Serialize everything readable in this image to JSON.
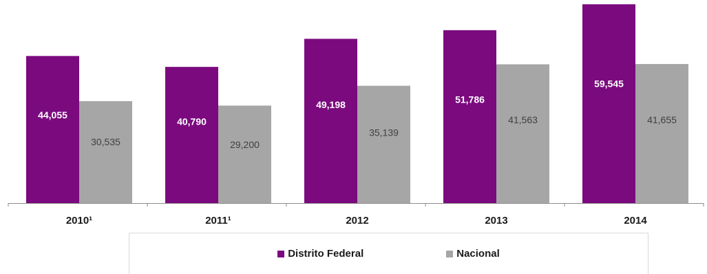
{
  "chart_data": {
    "type": "bar",
    "categories": [
      "2010¹",
      "2011¹",
      "2012",
      "2013",
      "2014"
    ],
    "series": [
      {
        "name": "Distrito Federal",
        "values": [
          44055,
          40790,
          49198,
          51786,
          59545
        ],
        "labels": [
          "44,055",
          "40,790",
          "49,198",
          "51,786",
          "59,545"
        ],
        "color": "#7b0a7f",
        "label_color": "#ffffff"
      },
      {
        "name": "Nacional",
        "values": [
          30535,
          29200,
          35139,
          41563,
          41655
        ],
        "labels": [
          "30,535",
          "29,200",
          "35,139",
          "41,563",
          "41,655"
        ],
        "color": "#a6a6a6",
        "label_color": "#404040"
      }
    ],
    "ylim": [
      0,
      60000
    ],
    "grid": false,
    "legend_position": "bottom"
  }
}
